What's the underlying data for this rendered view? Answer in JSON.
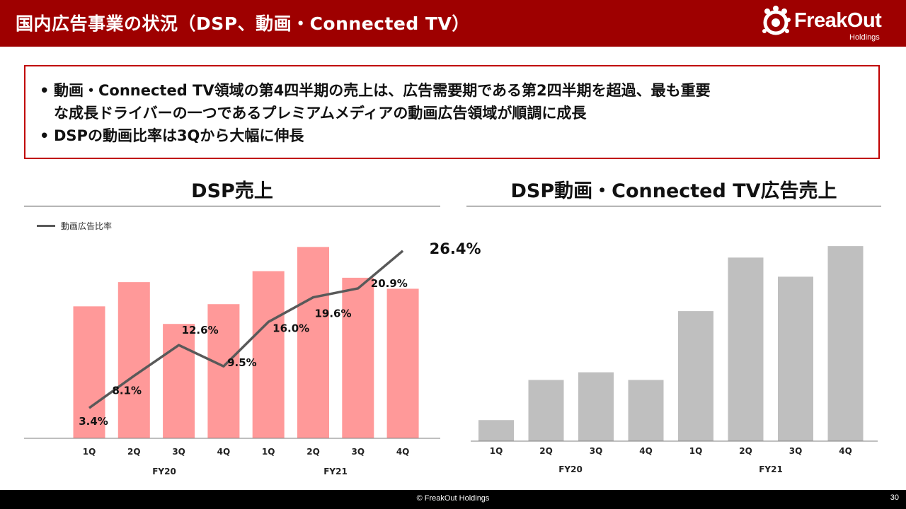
{
  "header": {
    "title": "国内広告事業の状況（DSP、動画・Connected TV）",
    "logo_text": "FreakOut",
    "logo_sub": "Holdings",
    "bg_color": "#9e0000"
  },
  "summary": {
    "bullet_1_line_1": "動画・Connected TV領域の第4四半期の売上は、広告需要期である第2四半期を超過、最も重要",
    "bullet_1_line_2": "な成長ドライバーの一つであるプレミアムメディアの動画広告領域が順調に成長",
    "bullet_2": "DSPの動画比率は3Qから大幅に伸長",
    "bullet_char": "•",
    "border_color": "#c00000"
  },
  "chart_data": [
    {
      "type": "bar",
      "title": "DSP売上",
      "categories": [
        "1Q",
        "2Q",
        "3Q",
        "4Q",
        "1Q",
        "2Q",
        "3Q",
        "4Q"
      ],
      "groups": [
        "FY20",
        "FY21"
      ],
      "values": [
        60,
        71,
        52,
        61,
        76,
        87,
        73,
        68
      ],
      "bar_color": "#ff9999",
      "line": {
        "name": "動画広告比率",
        "values": [
          3.4,
          8.1,
          12.6,
          9.5,
          16.0,
          19.6,
          20.9,
          26.4
        ],
        "labels": [
          "3.4%",
          "8.1%",
          "12.6%",
          "9.5%",
          "16.0%",
          "19.6%",
          "20.9%",
          "26.4%"
        ],
        "color": "#595959"
      },
      "legend": "top-left"
    },
    {
      "type": "bar",
      "title": "DSP動画・Connected TV広告売上",
      "categories": [
        "1Q",
        "2Q",
        "3Q",
        "4Q",
        "1Q",
        "2Q",
        "3Q",
        "4Q"
      ],
      "groups": [
        "FY20",
        "FY21"
      ],
      "values": [
        11,
        32,
        36,
        32,
        68,
        96,
        86,
        102
      ],
      "bar_color": "#bfbfbf"
    }
  ],
  "footer": {
    "copyright": "© FreakOut Holdings",
    "page_number": "30"
  }
}
